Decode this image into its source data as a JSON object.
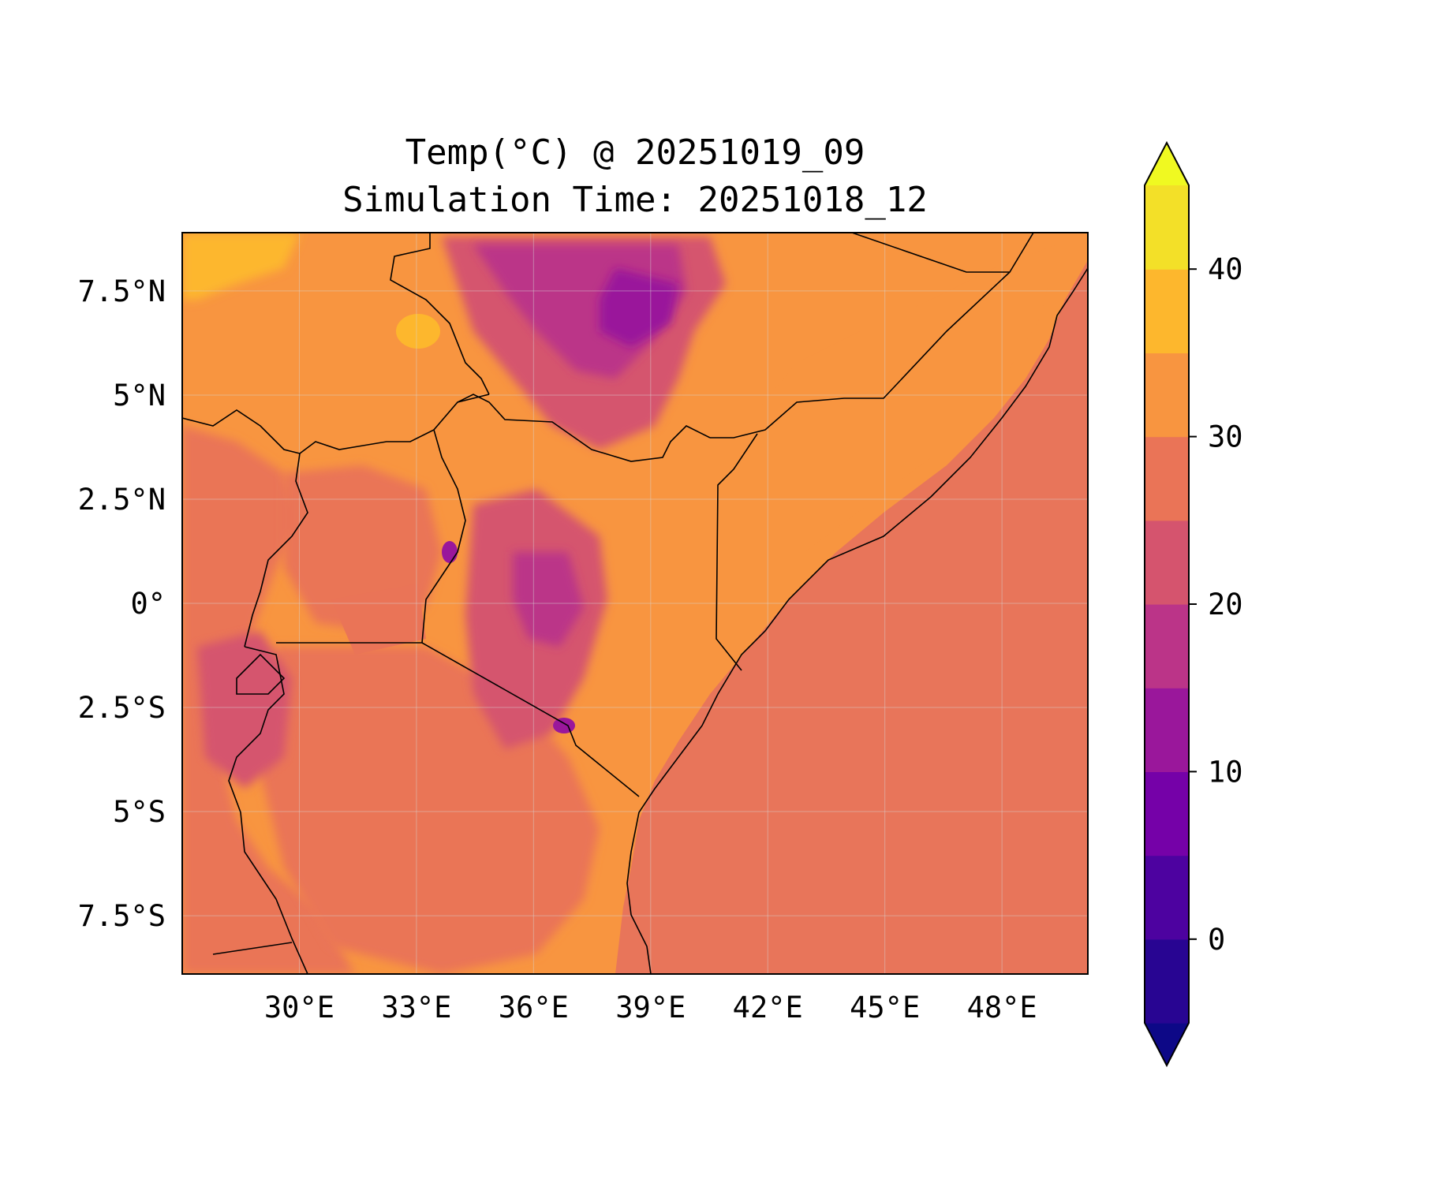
{
  "title": {
    "line1": "Temp(°C) @ 20251019_09",
    "line2": "Simulation Time: 20251018_12"
  },
  "map": {
    "lon_range": [
      27.0,
      50.2
    ],
    "lat_range": [
      -8.9,
      8.9
    ],
    "x_ticks": [
      {
        "value": 30,
        "label": "30°E"
      },
      {
        "value": 33,
        "label": "33°E"
      },
      {
        "value": 36,
        "label": "36°E"
      },
      {
        "value": 39,
        "label": "39°E"
      },
      {
        "value": 42,
        "label": "42°E"
      },
      {
        "value": 45,
        "label": "45°E"
      },
      {
        "value": 48,
        "label": "48°E"
      }
    ],
    "y_ticks": [
      {
        "value": 7.5,
        "label": "7.5°N"
      },
      {
        "value": 5,
        "label": "5°N"
      },
      {
        "value": 2.5,
        "label": "2.5°N"
      },
      {
        "value": 0,
        "label": "0°"
      },
      {
        "value": -2.5,
        "label": "2.5°S"
      },
      {
        "value": -5,
        "label": "5°S"
      },
      {
        "value": -7.5,
        "label": "7.5°S"
      }
    ],
    "ocean_color": "#e8755a",
    "gridlines": true
  },
  "colorbar": {
    "colormap": "plasma",
    "levels": [
      -5,
      0,
      5,
      10,
      15,
      20,
      25,
      30,
      35,
      40,
      45
    ],
    "extend": "both",
    "ticks": [
      {
        "value": 0,
        "label": "0"
      },
      {
        "value": 10,
        "label": "10"
      },
      {
        "value": 20,
        "label": "20"
      },
      {
        "value": 30,
        "label": "30"
      },
      {
        "value": 40,
        "label": "40"
      }
    ],
    "colors": [
      "#0d0887",
      "#280592",
      "#4d02a0",
      "#7501a8",
      "#9a179b",
      "#bb3488",
      "#d5546e",
      "#ea7457",
      "#f89540",
      "#fdb72d",
      "#f3e028",
      "#f0f921"
    ]
  }
}
